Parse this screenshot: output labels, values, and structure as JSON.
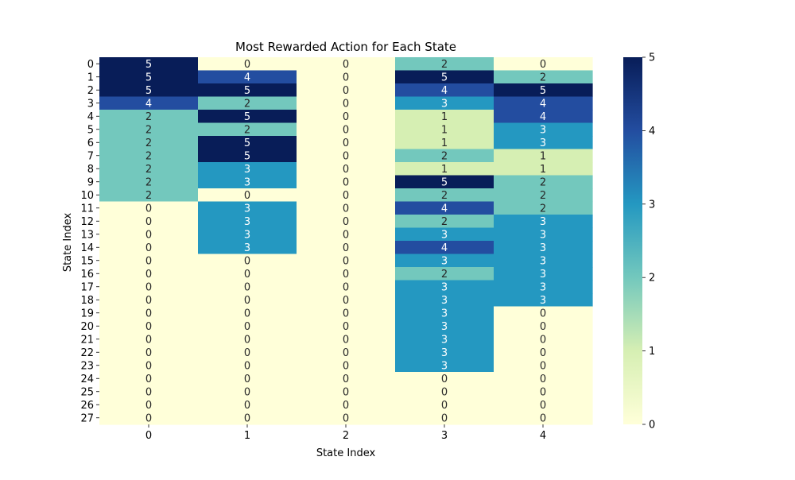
{
  "chart_data": {
    "type": "heatmap",
    "title": "Most Rewarded Action for Each State",
    "xlabel": "State Index",
    "ylabel": "State Index",
    "x_categories": [
      "0",
      "1",
      "2",
      "3",
      "4"
    ],
    "y_categories": [
      "0",
      "1",
      "2",
      "3",
      "4",
      "5",
      "6",
      "7",
      "8",
      "9",
      "10",
      "11",
      "12",
      "13",
      "14",
      "15",
      "16",
      "17",
      "18",
      "19",
      "20",
      "21",
      "22",
      "23",
      "24",
      "25",
      "26",
      "27"
    ],
    "values": [
      [
        5,
        0,
        0,
        2,
        0
      ],
      [
        5,
        4,
        0,
        5,
        2
      ],
      [
        5,
        5,
        0,
        4,
        5
      ],
      [
        4,
        2,
        0,
        3,
        4
      ],
      [
        2,
        5,
        0,
        1,
        4
      ],
      [
        2,
        2,
        0,
        1,
        3
      ],
      [
        2,
        5,
        0,
        1,
        3
      ],
      [
        2,
        5,
        0,
        2,
        1
      ],
      [
        2,
        3,
        0,
        1,
        1
      ],
      [
        2,
        3,
        0,
        5,
        2
      ],
      [
        2,
        0,
        0,
        2,
        2
      ],
      [
        0,
        3,
        0,
        4,
        2
      ],
      [
        0,
        3,
        0,
        2,
        3
      ],
      [
        0,
        3,
        0,
        3,
        3
      ],
      [
        0,
        3,
        0,
        4,
        3
      ],
      [
        0,
        0,
        0,
        3,
        3
      ],
      [
        0,
        0,
        0,
        2,
        3
      ],
      [
        0,
        0,
        0,
        3,
        3
      ],
      [
        0,
        0,
        0,
        3,
        3
      ],
      [
        0,
        0,
        0,
        3,
        0
      ],
      [
        0,
        0,
        0,
        3,
        0
      ],
      [
        0,
        0,
        0,
        3,
        0
      ],
      [
        0,
        0,
        0,
        3,
        0
      ],
      [
        0,
        0,
        0,
        3,
        0
      ],
      [
        0,
        0,
        0,
        0,
        0
      ],
      [
        0,
        0,
        0,
        0,
        0
      ],
      [
        0,
        0,
        0,
        0,
        0
      ],
      [
        0,
        0,
        0,
        0,
        0
      ]
    ],
    "colorbar": {
      "min": 0,
      "max": 5,
      "ticks": [
        "0",
        "1",
        "2",
        "3",
        "4",
        "5"
      ],
      "colormap": "YlGnBu",
      "colors": {
        "0": "#ffffd9",
        "1": "#d6efb3",
        "2": "#73c8bd",
        "3": "#2498c1",
        "4": "#234da0",
        "5": "#081d58"
      }
    },
    "annotate": true
  }
}
